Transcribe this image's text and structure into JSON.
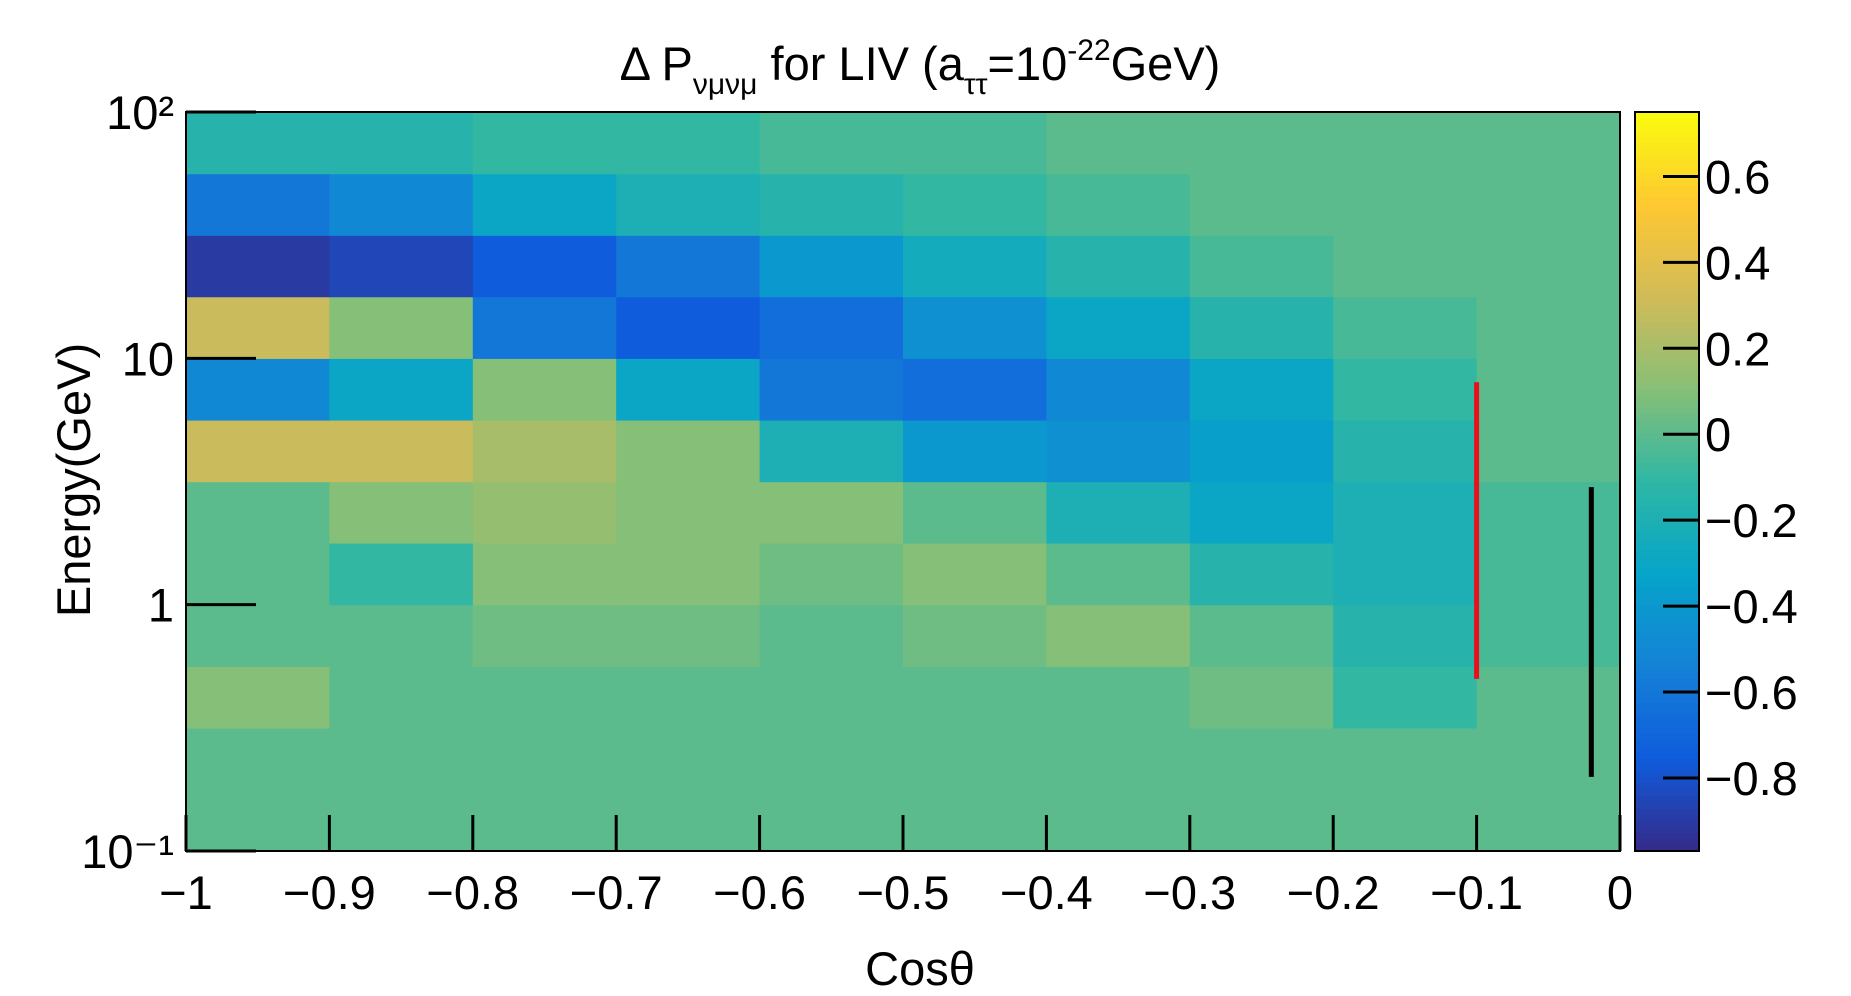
{
  "chart_data": {
    "type": "heatmap",
    "title_parts": [
      {
        "text": "Δ P"
      },
      {
        "text": "νμνμ",
        "script": "sub"
      },
      {
        "text": " for LIV (a"
      },
      {
        "text": "ττ",
        "script": "sub"
      },
      {
        "text": "=10"
      },
      {
        "text": "-22",
        "script": "sup"
      },
      {
        "text": "GeV)"
      }
    ],
    "x_label": "Cosθ",
    "y_label": "Energy(GeV)",
    "xlim": [
      -1,
      0
    ],
    "xticks": [
      {
        "value": -1,
        "label": "−1"
      },
      {
        "value": -0.9,
        "label": "−0.9"
      },
      {
        "value": -0.8,
        "label": "−0.8"
      },
      {
        "value": -0.7,
        "label": "−0.7"
      },
      {
        "value": -0.6,
        "label": "−0.6"
      },
      {
        "value": -0.5,
        "label": "−0.5"
      },
      {
        "value": -0.4,
        "label": "−0.4"
      },
      {
        "value": -0.3,
        "label": "−0.3"
      },
      {
        "value": -0.2,
        "label": "−0.2"
      },
      {
        "value": -0.1,
        "label": "−0.1"
      },
      0
    ],
    "ylim": [
      0.1,
      100
    ],
    "y_log": true,
    "yticks": [
      {
        "value": 0.1,
        "label": "10⁻¹"
      },
      1,
      10,
      {
        "value": 100,
        "label": "10²"
      }
    ],
    "zlim": [
      -0.97,
      0.75
    ],
    "zticks": [
      {
        "value": -0.8,
        "label": "−0.8"
      },
      {
        "value": -0.6,
        "label": "−0.6"
      },
      {
        "value": -0.4,
        "label": "−0.4"
      },
      {
        "value": -0.2,
        "label": "−0.2"
      },
      0,
      0.2,
      0.4,
      0.6
    ],
    "colormap": [
      "#352a87",
      "#0f5cdd",
      "#1481d6",
      "#06a4ca",
      "#2eb7a4",
      "#87bf77",
      "#d1bb59",
      "#fec832",
      "#f9fb0e"
    ],
    "x_edges": [
      -1,
      -0.9,
      -0.8,
      -0.7,
      -0.6,
      -0.5,
      -0.4,
      -0.3,
      -0.2,
      -0.1,
      0
    ],
    "y_edges": [
      0.1,
      0.178,
      0.316,
      0.562,
      1,
      1.78,
      3.16,
      5.62,
      10,
      17.8,
      31.6,
      56.2,
      100
    ],
    "z": [
      [
        0,
        0,
        0,
        0,
        0,
        0,
        0,
        0,
        0,
        0
      ],
      [
        0,
        0,
        0,
        0,
        0,
        0,
        0,
        0,
        0,
        0
      ],
      [
        0.1,
        0,
        0,
        0,
        0,
        0,
        0,
        0.05,
        -0.1,
        0
      ],
      [
        0,
        0,
        0.05,
        0.05,
        0,
        0.05,
        0.1,
        0,
        -0.15,
        -0.05
      ],
      [
        0,
        -0.1,
        0.1,
        0.1,
        0.05,
        0.1,
        0,
        -0.15,
        -0.2,
        -0.05
      ],
      [
        0,
        0.1,
        0.15,
        0.1,
        0.1,
        0,
        -0.2,
        -0.3,
        -0.2,
        -0.05
      ],
      [
        0.3,
        0.3,
        0.2,
        0.1,
        -0.2,
        -0.4,
        -0.45,
        -0.35,
        -0.15,
        0
      ],
      [
        -0.5,
        -0.3,
        0.1,
        -0.3,
        -0.6,
        -0.65,
        -0.5,
        -0.3,
        -0.1,
        0
      ],
      [
        0.3,
        0.1,
        -0.6,
        -0.75,
        -0.65,
        -0.45,
        -0.3,
        -0.15,
        -0.05,
        0
      ],
      [
        -0.9,
        -0.85,
        -0.75,
        -0.6,
        -0.4,
        -0.25,
        -0.15,
        -0.05,
        0,
        0
      ],
      [
        -0.6,
        -0.5,
        -0.3,
        -0.2,
        -0.15,
        -0.1,
        -0.05,
        0,
        0,
        0
      ],
      [
        -0.15,
        -0.15,
        -0.1,
        -0.1,
        -0.05,
        -0.05,
        0,
        0,
        0,
        0
      ]
    ],
    "lines": [
      {
        "x": -0.1,
        "y": [
          0.5,
          8
        ],
        "color": "#e8101a"
      },
      {
        "x": -0.02,
        "y": [
          0.2,
          3
        ],
        "color": "#000000"
      }
    ]
  }
}
